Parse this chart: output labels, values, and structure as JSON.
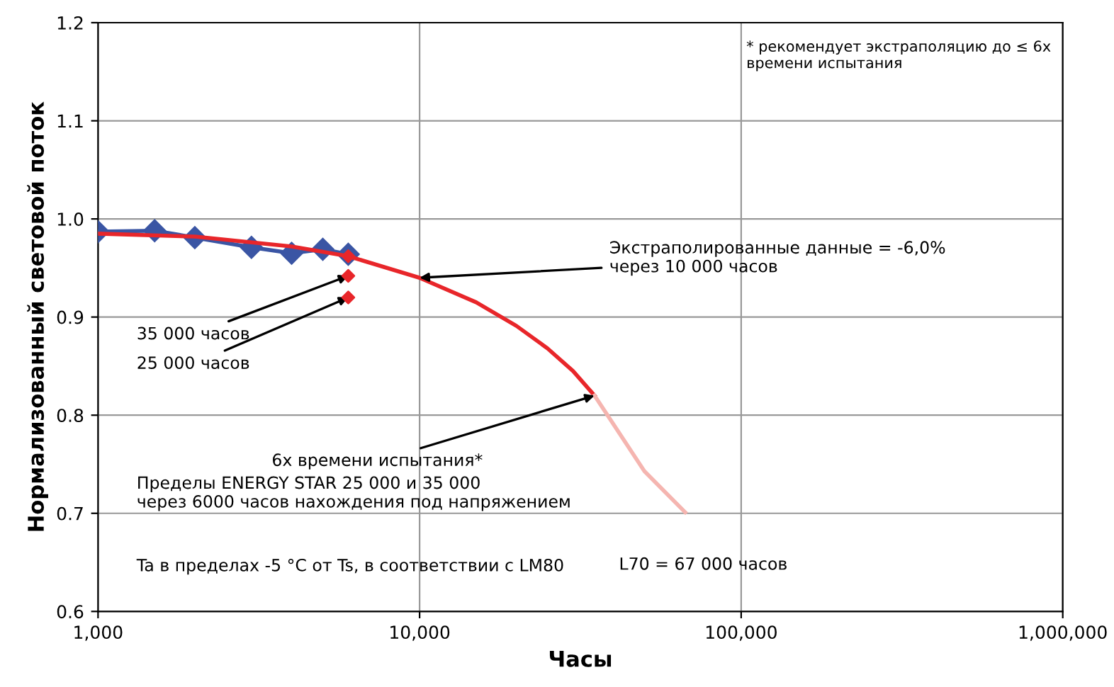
{
  "chart_data": {
    "type": "line",
    "xlabel": "Часы",
    "ylabel": "Нормализованный световой поток",
    "log": "x",
    "xlim": [
      1000,
      1000000
    ],
    "xticks": [
      {
        "value": 1000,
        "label": "1,000"
      },
      {
        "value": 10000,
        "label": "10,000"
      },
      {
        "value": 100000,
        "label": "100,000"
      },
      {
        "value": 1000000,
        "label": "1,000,000"
      }
    ],
    "ylim": [
      0.6,
      1.2
    ],
    "yticks": [
      {
        "value": 0.6,
        "label": "0.6"
      },
      {
        "value": 0.7,
        "label": "0.7"
      },
      {
        "value": 0.8,
        "label": "0.8"
      },
      {
        "value": 0.9,
        "label": "0.9"
      },
      {
        "value": 1.0,
        "label": "1.0"
      },
      {
        "value": 1.1,
        "label": "1.1"
      },
      {
        "value": 1.2,
        "label": "1.2"
      }
    ],
    "grid": true,
    "series": [
      {
        "color": "#3a55a4",
        "marker": "diamond",
        "x": [
          1000,
          1500,
          2000,
          3000,
          4000,
          5000,
          6000
        ],
        "values": [
          0.987,
          0.988,
          0.981,
          0.971,
          0.965,
          0.969,
          0.964
        ]
      },
      {
        "color": "#e8262a",
        "marker": "none",
        "x": [
          1000,
          2000,
          4000,
          6000,
          10000,
          15000,
          20000,
          25000,
          30000,
          35000
        ],
        "values": [
          0.985,
          0.982,
          0.972,
          0.962,
          0.94,
          0.915,
          0.891,
          0.868,
          0.845,
          0.82
        ]
      },
      {
        "color": "#f5b5b0",
        "marker": "none",
        "x": [
          35000,
          50000,
          67000
        ],
        "values": [
          0.82,
          0.743,
          0.701
        ]
      },
      {
        "type": "scatter",
        "color": "#e8262a",
        "marker": "diamond",
        "x": [
          6000,
          6000,
          6000
        ],
        "values": [
          0.962,
          0.942,
          0.92
        ]
      }
    ],
    "annotations": [
      "* рекомендует экстраполяцию до ≤ 6x\nвремени испытания",
      {
        "text": "35 000 часов",
        "x": 6000,
        "y": 0.942
      },
      {
        "text": "25 000 часов",
        "x": 6000,
        "y": 0.92
      },
      {
        "text": "Экстраполированные данные = -6,0%\nчерез 10 000 часов",
        "x": 10000,
        "y": 0.94
      },
      {
        "text": "6x времени испытания*",
        "x": 35000,
        "y": 0.82
      },
      "Пределы ENERGY STAR 25 000 и 35 000\nчерез 6000 часов нахождения под напряжением",
      {
        "text": "L70 = 67 000 часов",
        "x": 67000,
        "y": 0.701
      },
      "Ta в пределах -5 °C от Ts, в соответствии с LM80"
    ]
  }
}
